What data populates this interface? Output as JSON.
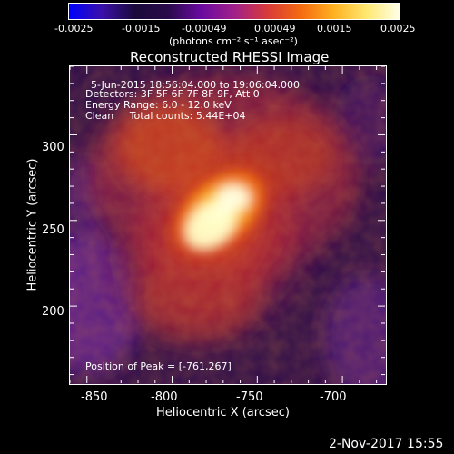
{
  "colorbar": {
    "ticks": [
      "-0.0025",
      "-0.0015",
      "-0.00049",
      "0.00049",
      "0.0015",
      "0.0025"
    ],
    "unit_label": "(photons cm⁻² s⁻¹ asec⁻²)",
    "colors": [
      "#0000ff",
      "#3a10a8",
      "#1a0a3a",
      "#2a0a4a",
      "#6a0aa0",
      "#a0208a",
      "#d83a3a",
      "#f46a10",
      "#ffb020",
      "#ffe870",
      "#ffffe8"
    ]
  },
  "image": {
    "title": "Reconstructed RHESSI Image",
    "info_lines": [
      "5-Jun-2015 18:56:04.000 to 19:06:04.000",
      "Detectors: 3F 5F 6F 7F 8F 9F, Att 0",
      "Energy Range: 6.0 - 12.0 keV",
      "Clean     Total counts: 5.44E+04"
    ],
    "peak_text": "Position of Peak = [-761,267]",
    "peak_position": [
      -761,
      267
    ],
    "x_axis_label": "Heliocentric X (arcsec)",
    "y_axis_label": "Heliocentric Y (arcsec)",
    "x_ticks": [
      "-850",
      "-800",
      "-750",
      "-700"
    ],
    "y_ticks": [
      "300",
      "250",
      "200"
    ],
    "x_range": [
      -860,
      -675
    ],
    "y_range": [
      155,
      340
    ],
    "timestamp": "2-Nov-2017 15:55"
  }
}
